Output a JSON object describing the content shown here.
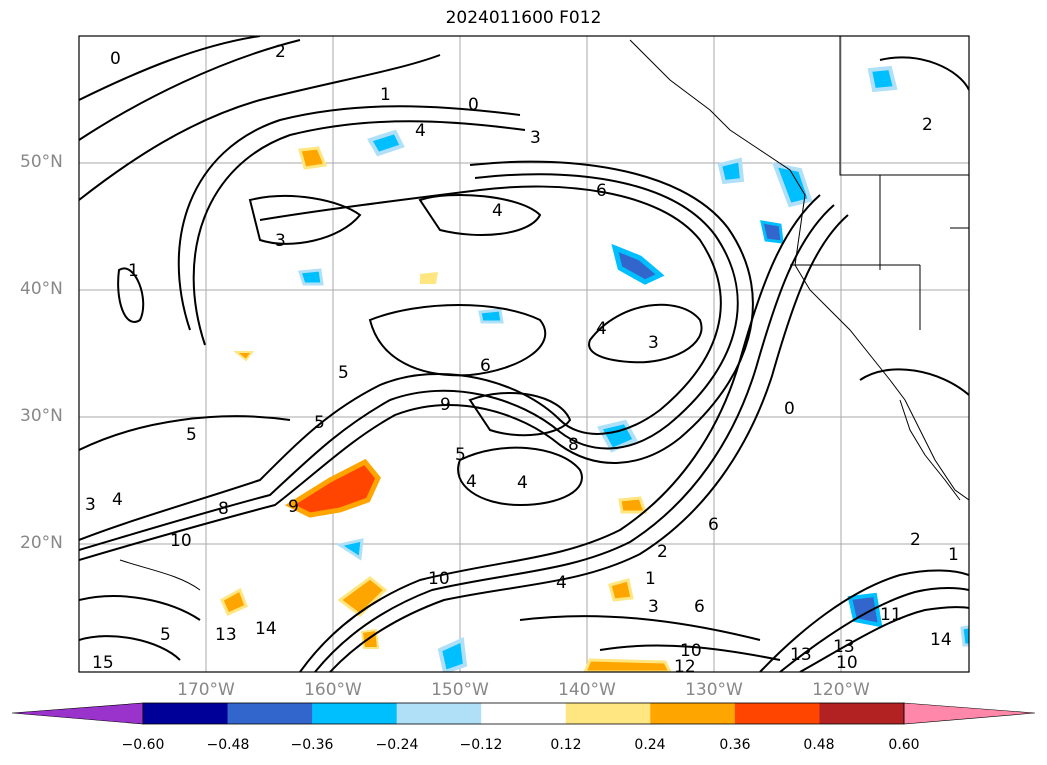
{
  "title": "2024011600 F012",
  "lat_labels": [
    "50°N",
    "40°N",
    "30°N",
    "20°N"
  ],
  "lon_labels": [
    "170°W",
    "160°W",
    "150°W",
    "140°W",
    "130°W",
    "120°W"
  ],
  "colorbar": {
    "ticks": [
      "−0.60",
      "−0.48",
      "−0.36",
      "−0.24",
      "−0.12",
      "0.12",
      "0.24",
      "0.36",
      "0.48",
      "0.60"
    ],
    "colors": [
      "#9933cc",
      "#000099",
      "#3366cc",
      "#00bfff",
      "#b0e0f8",
      "#ffffff",
      "#ffe680",
      "#ffa500",
      "#ff4500",
      "#b22222",
      "#ff88aa"
    ]
  },
  "contour_labels": [
    "0",
    "2",
    "1",
    "3",
    "4",
    "5",
    "6",
    "8",
    "9",
    "10",
    "11",
    "12",
    "13",
    "14",
    "15"
  ]
}
